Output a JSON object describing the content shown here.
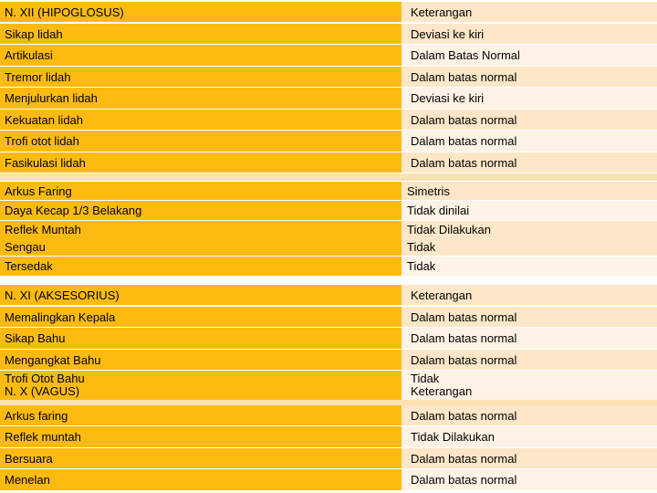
{
  "sections": {
    "hipoglosus": {
      "header": {
        "name": "N. XII (HIPOGLOSUS)",
        "value": "Keterangan"
      },
      "rows": [
        {
          "name": "Sikap lidah",
          "value": "Deviasi ke kiri"
        },
        {
          "name": "Artikulasi",
          "value": "Dalam Batas Normal"
        },
        {
          "name": "Tremor lidah",
          "value": "Dalam batas normal"
        },
        {
          "name": "Menjulurkan lidah",
          "value": "Deviasi ke kiri"
        },
        {
          "name": "Kekuatan lidah",
          "value": "Dalam batas normal"
        },
        {
          "name": "Trofi otot lidah",
          "value": "Dalam batas normal"
        },
        {
          "name": "Fasikulasi lidah",
          "value": "Dalam batas normal"
        }
      ]
    },
    "faring": {
      "rows": [
        {
          "name": "Arkus Faring",
          "value": "Simetris"
        },
        {
          "name": "Daya Kecap 1/3 Belakang",
          "value": "Tidak dinilai"
        },
        {
          "name": "Reflek Muntah",
          "value": "Tidak Dilakukan"
        },
        {
          "name": "Sengau",
          "value": "Tidak"
        },
        {
          "name": "Tersedak",
          "value": "Tidak"
        }
      ]
    },
    "aksesorius": {
      "header": {
        "name": "N. XI (AKSESORIUS)",
        "value": "Keterangan"
      },
      "rows": [
        {
          "name": "Memalingkan Kepala",
          "value": "Dalam batas normal"
        },
        {
          "name": "Sikap Bahu",
          "value": "Dalam batas normal"
        },
        {
          "name": "Mengangkat Bahu",
          "value": "Dalam batas normal"
        },
        {
          "name": "Trofi Otot Bahu",
          "value": "Tidak"
        }
      ]
    },
    "vagus": {
      "header": {
        "name": "N. X (VAGUS)",
        "value": "Keterangan"
      },
      "rows": [
        {
          "name": "Arkus faring",
          "value": "Dalam batas normal"
        },
        {
          "name": "Reflek muntah",
          "value": "Tidak Dilakukan"
        },
        {
          "name": "Bersuara",
          "value": "Dalam batas normal"
        },
        {
          "name": "Menelan",
          "value": "Dalam batas normal"
        }
      ]
    }
  },
  "colors": {
    "orange": "#fdbb11",
    "light": "#fde7c8",
    "pale": "#fef3e6"
  }
}
